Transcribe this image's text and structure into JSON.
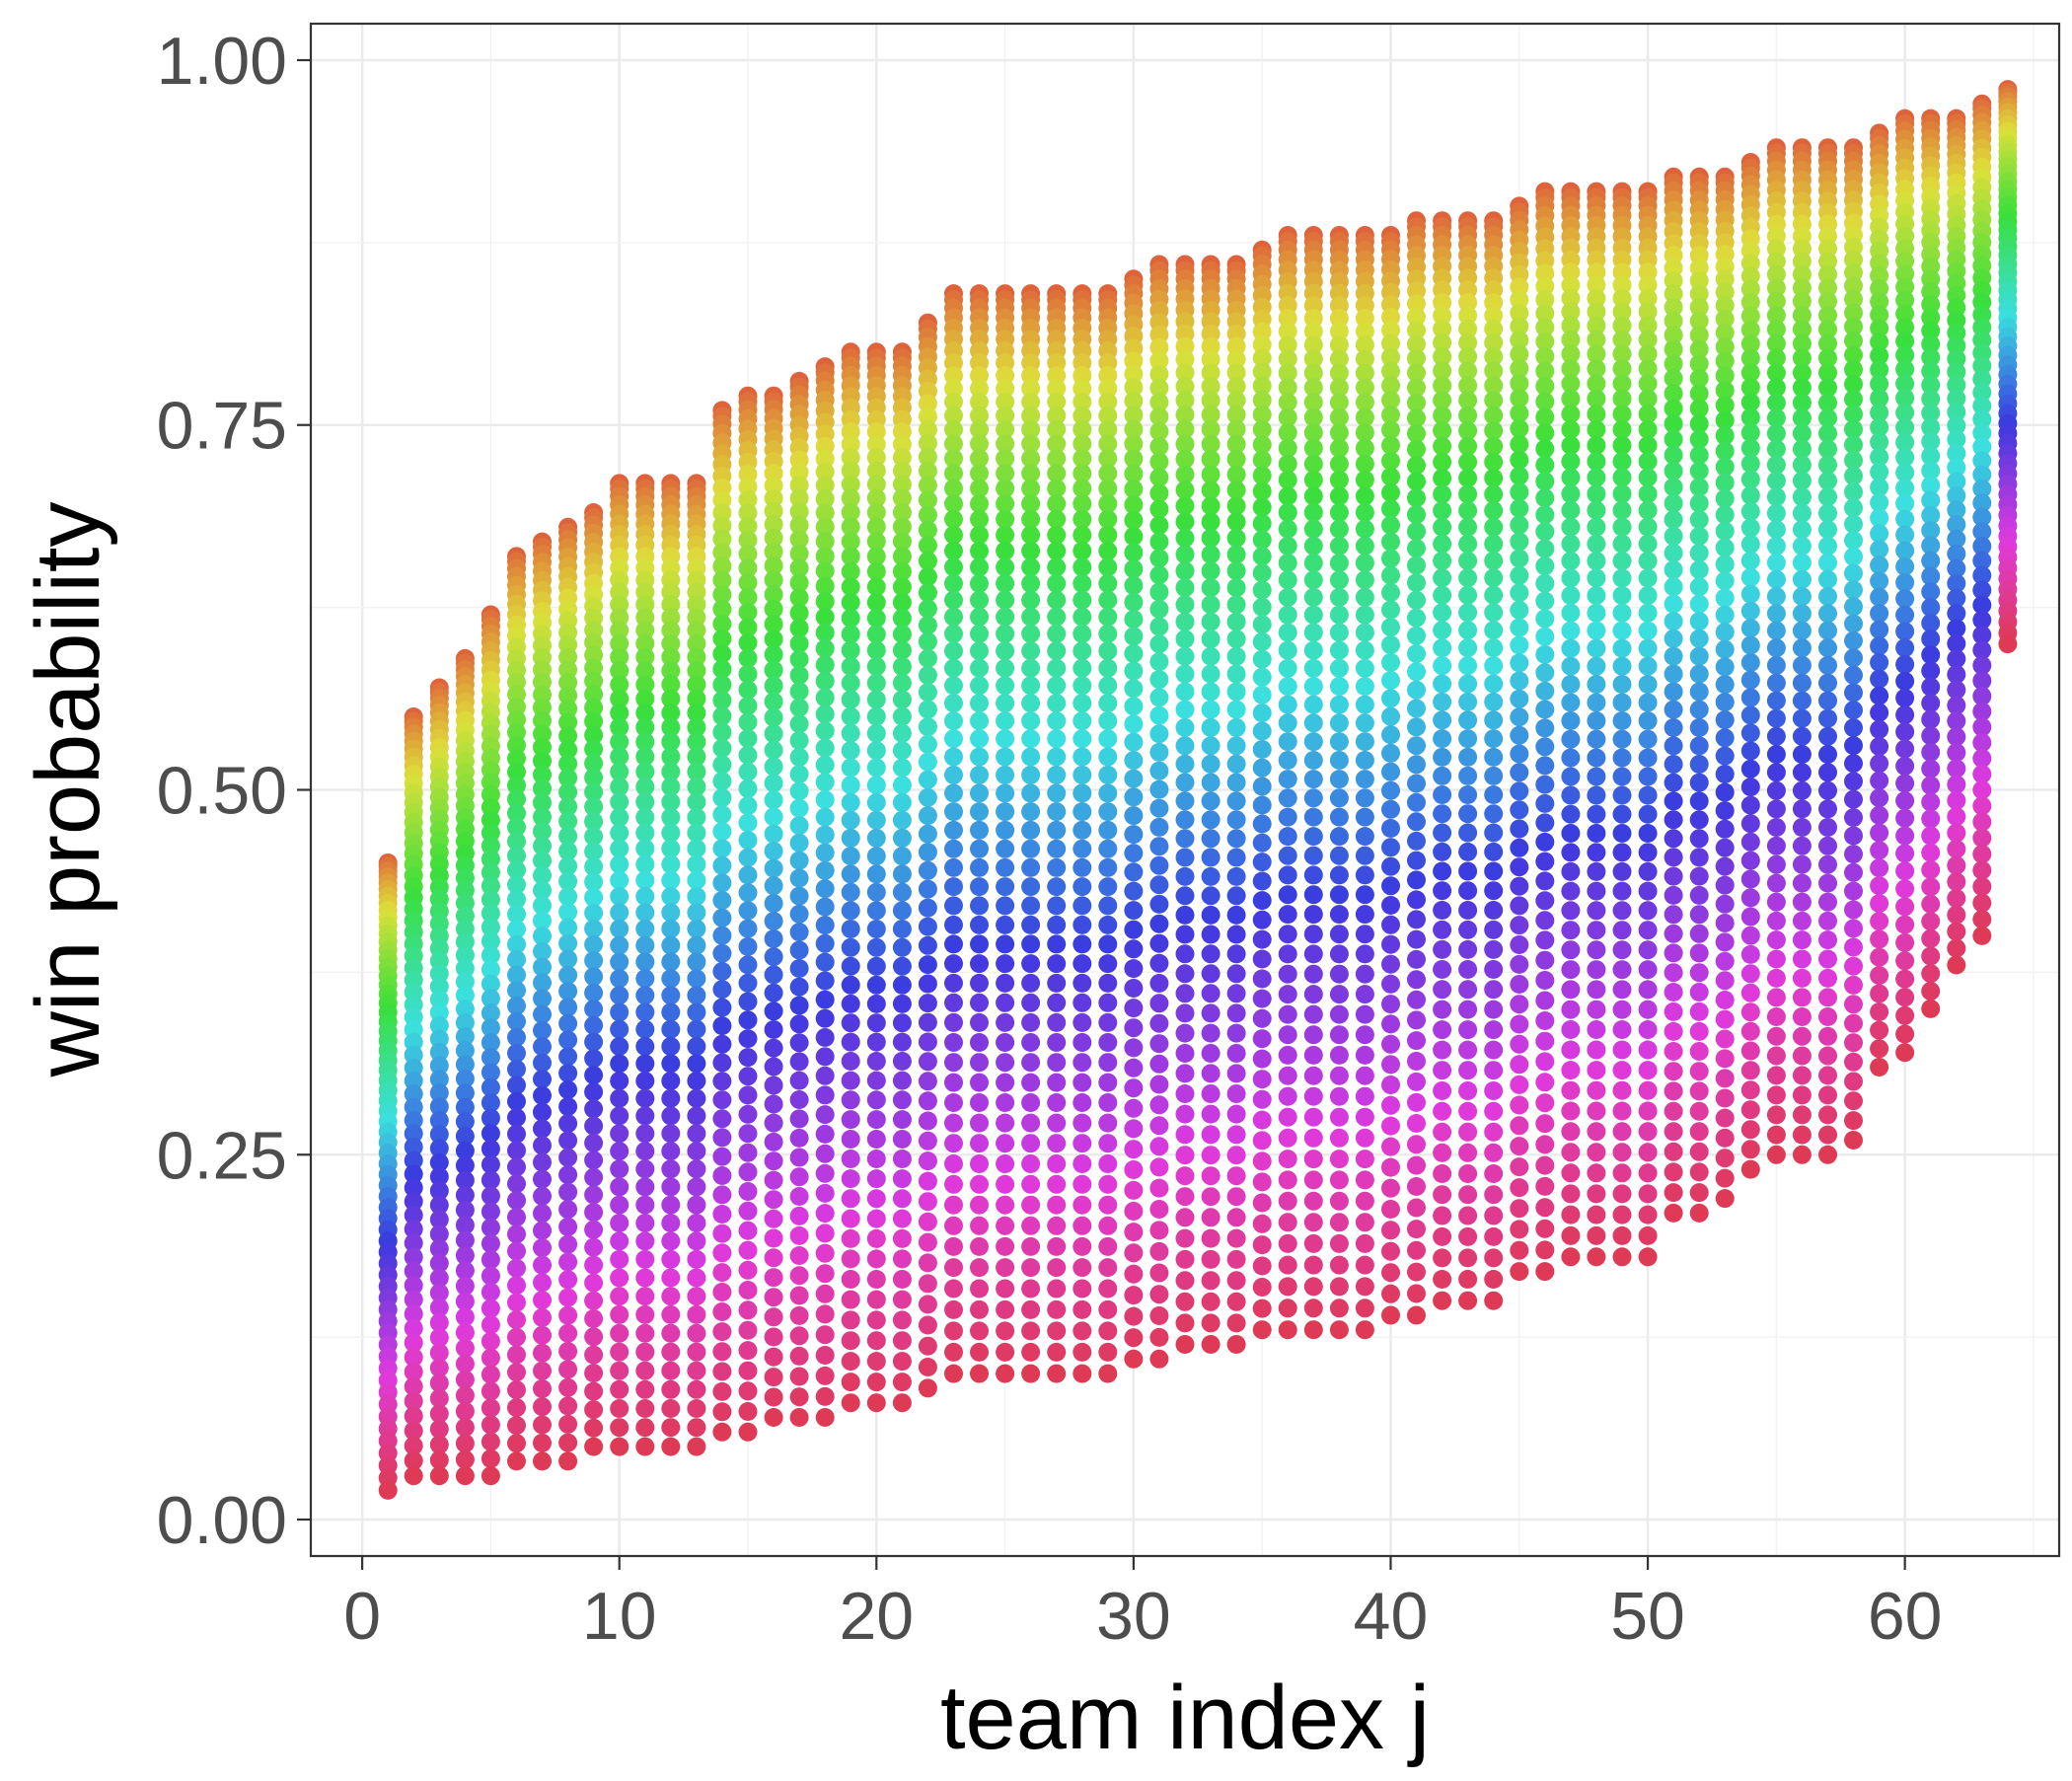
{
  "chart_data": {
    "type": "scatter",
    "title": "",
    "xlabel": "team index j",
    "ylabel": "win probability",
    "xlim": [
      -2,
      66
    ],
    "ylim": [
      -0.025,
      1.025
    ],
    "x_ticks": [
      0,
      10,
      20,
      30,
      40,
      50,
      60
    ],
    "x_tick_labels": [
      "0",
      "10",
      "20",
      "30",
      "40",
      "50",
      "60"
    ],
    "y_ticks": [
      0,
      0.25,
      0.5,
      0.75,
      1
    ],
    "y_tick_labels": [
      "0.00",
      "0.25",
      "0.50",
      "0.75",
      "1.00"
    ],
    "grid": true,
    "legend": "none",
    "theme": "bw",
    "n_teams": 64,
    "n_series": 64,
    "point_color_scale": "hue (red → orange → olive → green → cyan → blue → purple → magenta → pink), one hue per series",
    "x": [
      1,
      2,
      3,
      4,
      5,
      6,
      7,
      8,
      9,
      10,
      11,
      12,
      13,
      14,
      15,
      16,
      17,
      18,
      19,
      20,
      21,
      22,
      23,
      24,
      25,
      26,
      27,
      28,
      29,
      30,
      31,
      32,
      33,
      34,
      35,
      36,
      37,
      38,
      39,
      40,
      41,
      42,
      43,
      44,
      45,
      46,
      47,
      48,
      49,
      50,
      51,
      52,
      53,
      54,
      55,
      56,
      57,
      58,
      59,
      60,
      61,
      62,
      63,
      64
    ],
    "upper_envelope": [
      0.45,
      0.55,
      0.57,
      0.59,
      0.62,
      0.66,
      0.67,
      0.68,
      0.69,
      0.71,
      0.71,
      0.71,
      0.71,
      0.76,
      0.77,
      0.77,
      0.78,
      0.79,
      0.8,
      0.8,
      0.8,
      0.82,
      0.84,
      0.84,
      0.84,
      0.84,
      0.84,
      0.84,
      0.84,
      0.85,
      0.86,
      0.86,
      0.86,
      0.86,
      0.87,
      0.88,
      0.88,
      0.88,
      0.88,
      0.88,
      0.89,
      0.89,
      0.89,
      0.89,
      0.9,
      0.91,
      0.91,
      0.91,
      0.91,
      0.91,
      0.92,
      0.92,
      0.92,
      0.93,
      0.94,
      0.94,
      0.94,
      0.94,
      0.95,
      0.96,
      0.96,
      0.96,
      0.97,
      0.98
    ],
    "lower_envelope": [
      0.02,
      0.03,
      0.03,
      0.03,
      0.03,
      0.04,
      0.04,
      0.04,
      0.05,
      0.05,
      0.05,
      0.05,
      0.05,
      0.06,
      0.06,
      0.07,
      0.07,
      0.07,
      0.08,
      0.08,
      0.08,
      0.09,
      0.1,
      0.1,
      0.1,
      0.1,
      0.1,
      0.1,
      0.1,
      0.11,
      0.11,
      0.12,
      0.12,
      0.12,
      0.13,
      0.13,
      0.13,
      0.13,
      0.13,
      0.14,
      0.14,
      0.15,
      0.15,
      0.15,
      0.17,
      0.17,
      0.18,
      0.18,
      0.18,
      0.18,
      0.21,
      0.21,
      0.22,
      0.24,
      0.25,
      0.25,
      0.25,
      0.26,
      0.31,
      0.32,
      0.35,
      0.38,
      0.4,
      0.6
    ],
    "series_curvature": 1.25
  }
}
